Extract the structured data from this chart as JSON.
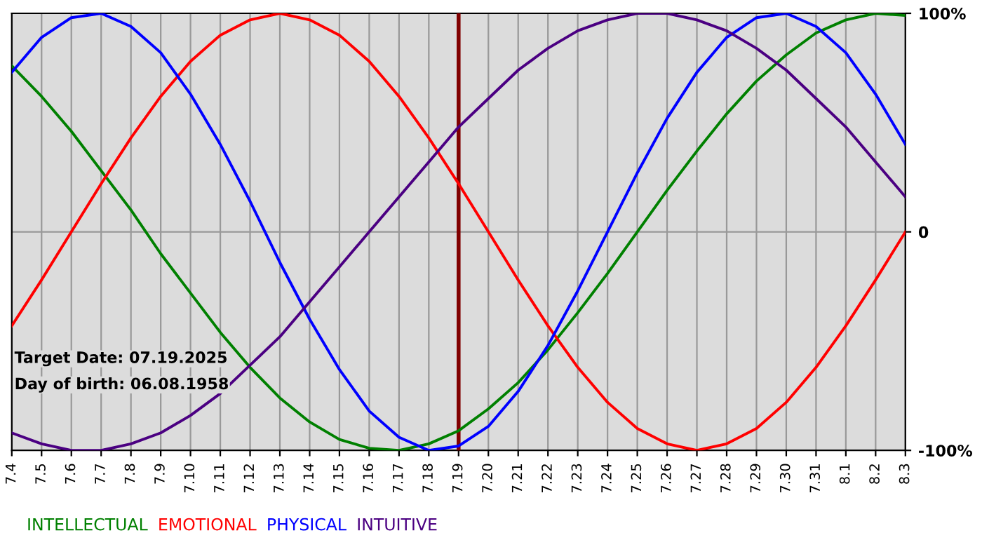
{
  "chart_data": {
    "type": "line",
    "categories": [
      "7.4",
      "7.5",
      "7.6",
      "7.7",
      "7.8",
      "7.9",
      "7.10",
      "7.11",
      "7.12",
      "7.13",
      "7.14",
      "7.15",
      "7.16",
      "7.17",
      "7.18",
      "7.19",
      "7.20",
      "7.21",
      "7.22",
      "7.23",
      "7.24",
      "7.25",
      "7.26",
      "7.27",
      "7.28",
      "7.29",
      "7.30",
      "7.31",
      "8.1",
      "8.2",
      "8.3"
    ],
    "series": [
      {
        "name": "INTELLECTUAL",
        "color": "#008000",
        "values": [
          76,
          62,
          46,
          28,
          10,
          -10,
          -28,
          -46,
          -62,
          -76,
          -87,
          -95,
          -99,
          -100,
          -97,
          -91,
          -81,
          -69,
          -54,
          -37,
          -19,
          0,
          19,
          37,
          54,
          69,
          81,
          91,
          97,
          100,
          99
        ]
      },
      {
        "name": "EMOTIONAL",
        "color": "#ff0000",
        "values": [
          -43,
          -22,
          0,
          22,
          43,
          62,
          78,
          90,
          97,
          100,
          97,
          90,
          78,
          62,
          43,
          22,
          0,
          -22,
          -43,
          -62,
          -78,
          -90,
          -97,
          -100,
          -97,
          -90,
          -78,
          -62,
          -43,
          -22,
          0
        ]
      },
      {
        "name": "PHYSICAL",
        "color": "#0000ff",
        "values": [
          73,
          89,
          98,
          100,
          94,
          82,
          63,
          40,
          14,
          -14,
          -40,
          -63,
          -82,
          -94,
          -100,
          -98,
          -89,
          -73,
          -52,
          -27,
          0,
          27,
          52,
          73,
          89,
          98,
          100,
          94,
          82,
          63,
          40
        ]
      },
      {
        "name": "INTUITIVE",
        "color": "#4b0082",
        "values": [
          -92,
          -97,
          -100,
          -100,
          -97,
          -92,
          -84,
          -74,
          -61,
          -48,
          -32,
          -16,
          0,
          16,
          32,
          48,
          61,
          74,
          84,
          92,
          97,
          100,
          100,
          97,
          92,
          84,
          74,
          61,
          48,
          32,
          16
        ]
      }
    ],
    "ylim": [
      -100,
      100
    ],
    "yticks": [
      {
        "value": 100,
        "label": "100%"
      },
      0,
      {
        "value": -100,
        "label": "-100%"
      }
    ],
    "ref_lines": [
      {
        "axis": "x",
        "value": "7.19",
        "color": "#800000"
      }
    ],
    "annotations": [
      "Target Date: 07.19.2025",
      "Day of birth: 06.08.1958"
    ],
    "grid": true,
    "legend": "bottom left",
    "marker": "none",
    "line_style": "solid"
  }
}
